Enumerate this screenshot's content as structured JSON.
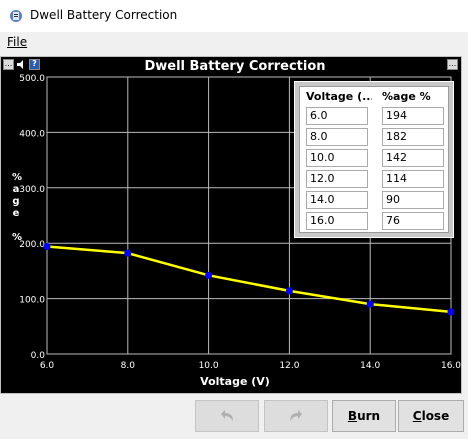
{
  "window": {
    "title": "Dwell Battery Correction"
  },
  "menu": {
    "file_label": "File"
  },
  "chart_toolbar": {
    "btn1": "...",
    "btn3": "?"
  },
  "chart_data": {
    "type": "line",
    "title": "Dwell Battery Correction",
    "xlabel": "Voltage (V)",
    "ylabel": "%age %",
    "x": [
      6.0,
      8.0,
      10.0,
      12.0,
      14.0,
      16.0
    ],
    "values": [
      194,
      182,
      142,
      114,
      90,
      76
    ],
    "xlim": [
      6.0,
      16.0
    ],
    "ylim": [
      0.0,
      500.0
    ],
    "x_ticks": [
      "6.0",
      "8.0",
      "10.0",
      "12.0",
      "14.0",
      "16.0"
    ],
    "y_ticks": [
      "0.0",
      "100.0",
      "200.0",
      "300.0",
      "400.0",
      "500.0"
    ],
    "line_color": "#ffff00",
    "point_color": "#0000ff",
    "grid": true
  },
  "table": {
    "col1_header": "Voltage (...",
    "col2_header": "%age %",
    "expand_btn": "...",
    "rows": [
      {
        "voltage": "6.0",
        "pct": "194"
      },
      {
        "voltage": "8.0",
        "pct": "182"
      },
      {
        "voltage": "10.0",
        "pct": "142"
      },
      {
        "voltage": "12.0",
        "pct": "114"
      },
      {
        "voltage": "14.0",
        "pct": "90"
      },
      {
        "voltage": "16.0",
        "pct": "76"
      }
    ]
  },
  "buttons": {
    "burn": "Burn",
    "burn_mnemonic": "B",
    "burn_rest": "urn",
    "close_mnemonic": "C",
    "close_rest": "lose"
  }
}
